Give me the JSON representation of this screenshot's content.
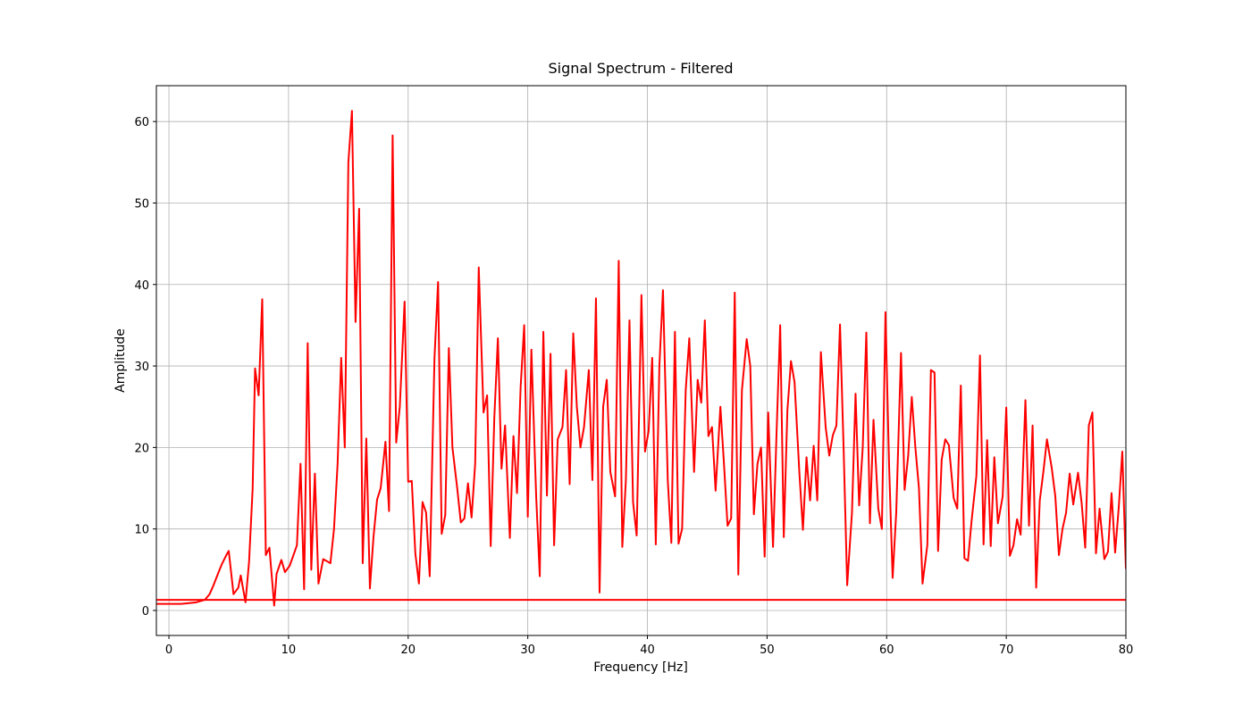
{
  "chart_data": {
    "type": "line",
    "title": "Signal Spectrum - Filtered",
    "x_label": "Frequency [Hz]",
    "y_label": "Amplitude",
    "xlim": [
      -1.05,
      80
    ],
    "ylim": [
      -3.07,
      64.4
    ],
    "xticks": [
      0,
      10,
      20,
      30,
      40,
      50,
      60,
      70,
      80
    ],
    "yticks": [
      0,
      10,
      20,
      30,
      40,
      50,
      60
    ],
    "grid": true,
    "threshold": 1.3,
    "threshold_color": "#ff0000",
    "series": [
      {
        "color": "#ff0000",
        "x": [
          -1.05,
          0,
          1,
          1.7,
          2.3,
          3.0,
          3.4,
          3.7,
          4.1,
          4.4,
          4.8,
          5.0,
          5.4,
          5.8,
          6.0,
          6.4,
          6.7,
          7.0,
          7.2,
          7.5,
          7.8,
          8.1,
          8.4,
          8.8,
          9.0,
          9.4,
          9.7,
          10.1,
          10.7,
          11.0,
          11.3,
          11.6,
          11.9,
          12.2,
          12.5,
          12.9,
          13.5,
          13.8,
          14.1,
          14.4,
          14.7,
          15.0,
          15.3,
          15.6,
          15.9,
          16.2,
          16.5,
          16.8,
          17.1,
          17.4,
          17.7,
          18.1,
          18.4,
          18.7,
          19.0,
          19.3,
          19.7,
          20.0,
          20.3,
          20.6,
          20.9,
          21.2,
          21.5,
          21.8,
          22.2,
          22.5,
          22.8,
          23.1,
          23.4,
          23.7,
          24.1,
          24.4,
          24.7,
          25.0,
          25.3,
          25.6,
          25.9,
          26.3,
          26.6,
          26.9,
          27.2,
          27.5,
          27.8,
          28.1,
          28.5,
          28.8,
          29.1,
          29.4,
          29.7,
          30.0,
          30.3,
          30.7,
          31.0,
          31.3,
          31.6,
          31.9,
          32.2,
          32.5,
          32.9,
          33.2,
          33.5,
          33.8,
          34.1,
          34.4,
          34.7,
          35.1,
          35.4,
          35.7,
          36.0,
          36.3,
          36.6,
          36.9,
          37.3,
          37.6,
          37.9,
          38.2,
          38.5,
          38.8,
          39.1,
          39.5,
          39.8,
          40.1,
          40.4,
          40.7,
          41.0,
          41.3,
          41.7,
          42.0,
          42.3,
          42.6,
          42.9,
          43.2,
          43.5,
          43.9,
          44.2,
          44.5,
          44.8,
          45.1,
          45.4,
          45.7,
          46.1,
          46.4,
          46.7,
          47.0,
          47.3,
          47.6,
          47.9,
          48.3,
          48.6,
          48.9,
          49.2,
          49.5,
          49.8,
          50.1,
          50.5,
          50.8,
          51.1,
          51.4,
          51.7,
          52.0,
          52.3,
          52.7,
          53.0,
          53.3,
          53.6,
          53.9,
          54.2,
          54.5,
          54.9,
          55.2,
          55.5,
          55.8,
          56.1,
          56.4,
          56.7,
          57.1,
          57.4,
          57.7,
          58.0,
          58.3,
          58.6,
          58.9,
          59.3,
          59.6,
          59.9,
          60.2,
          60.5,
          60.8,
          61.2,
          61.5,
          61.8,
          62.1,
          62.4,
          62.7,
          63.0,
          63.4,
          63.7,
          64.0,
          64.3,
          64.6,
          64.9,
          65.2,
          65.6,
          65.9,
          66.2,
          66.5,
          66.8,
          67.1,
          67.5,
          67.8,
          68.1,
          68.4,
          68.7,
          69.0,
          69.3,
          69.7,
          70.0,
          70.3,
          70.6,
          70.9,
          71.2,
          71.6,
          71.9,
          72.2,
          72.5,
          72.8,
          73.1,
          73.4,
          73.8,
          74.1,
          74.4,
          74.7,
          75.0,
          75.3,
          75.6,
          76.0,
          76.3,
          76.6,
          76.9,
          77.2,
          77.5,
          77.8,
          78.2,
          78.5,
          78.8,
          79.1,
          79.4,
          79.7,
          80.0
        ],
        "values": [
          0.8,
          0.8,
          0.8,
          0.9,
          1.0,
          1.3,
          2.0,
          3.0,
          4.5,
          5.6,
          6.8,
          7.3,
          2.0,
          2.8,
          4.3,
          1.0,
          6.0,
          15.0,
          29.7,
          26.4,
          38.2,
          6.8,
          7.7,
          0.6,
          4.5,
          6.2,
          4.7,
          5.5,
          8.0,
          18.0,
          2.6,
          32.8,
          5.0,
          16.8,
          3.3,
          6.3,
          5.8,
          10.0,
          18.0,
          31.0,
          20.0,
          55.0,
          61.3,
          35.4,
          49.3,
          5.8,
          21.1,
          2.7,
          9.0,
          13.6,
          15.0,
          20.7,
          12.2,
          58.3,
          20.6,
          25.0,
          37.9,
          15.8,
          15.9,
          7.0,
          3.3,
          13.3,
          12.0,
          4.2,
          31.0,
          40.3,
          9.4,
          11.7,
          32.2,
          20.0,
          15.0,
          10.8,
          11.3,
          15.6,
          11.4,
          18.0,
          42.1,
          24.3,
          26.4,
          7.9,
          23.6,
          33.4,
          17.4,
          22.7,
          8.9,
          21.4,
          14.4,
          27.4,
          35.0,
          11.5,
          32.0,
          14.0,
          4.2,
          34.2,
          14.1,
          31.5,
          8.0,
          21.0,
          22.5,
          29.5,
          15.5,
          34.0,
          25.0,
          20.0,
          22.5,
          29.5,
          16.0,
          38.3,
          2.2,
          25.0,
          28.3,
          17.0,
          14.0,
          42.9,
          7.8,
          16.0,
          35.6,
          13.3,
          9.2,
          38.7,
          19.5,
          22.0,
          31.0,
          8.1,
          30.0,
          39.3,
          16.0,
          8.3,
          34.2,
          8.2,
          10.0,
          27.0,
          33.4,
          17.0,
          28.3,
          25.5,
          35.6,
          21.4,
          22.5,
          14.7,
          25.0,
          18.0,
          10.4,
          11.3,
          39.0,
          4.4,
          27.0,
          33.3,
          30.0,
          11.8,
          18.0,
          20.0,
          6.6,
          24.3,
          7.8,
          22.0,
          35.0,
          9.0,
          24.5,
          30.6,
          28.0,
          17.0,
          9.9,
          18.8,
          13.5,
          20.2,
          13.5,
          31.7,
          22.5,
          19.0,
          21.5,
          22.7,
          35.1,
          20.0,
          3.1,
          12.0,
          26.6,
          12.9,
          20.0,
          34.1,
          10.7,
          23.4,
          12.5,
          10.0,
          36.6,
          18.0,
          4.0,
          12.0,
          31.6,
          14.8,
          19.0,
          26.2,
          20.0,
          15.0,
          3.3,
          8.0,
          29.5,
          29.2,
          7.3,
          18.5,
          21.0,
          20.3,
          13.8,
          12.5,
          27.6,
          6.4,
          6.1,
          11.0,
          16.5,
          31.3,
          8.1,
          20.9,
          7.9,
          18.8,
          10.7,
          14.0,
          24.9,
          6.7,
          8.0,
          11.2,
          9.3,
          25.8,
          10.4,
          22.7,
          2.8,
          13.5,
          17.0,
          21.0,
          17.5,
          14.0,
          6.8,
          10.0,
          12.0,
          16.8,
          13.0,
          16.9,
          13.2,
          7.7,
          22.7,
          24.3,
          7.0,
          12.5,
          6.3,
          7.2,
          14.4,
          7.1,
          12.6,
          19.5,
          5.1
        ]
      }
    ]
  }
}
